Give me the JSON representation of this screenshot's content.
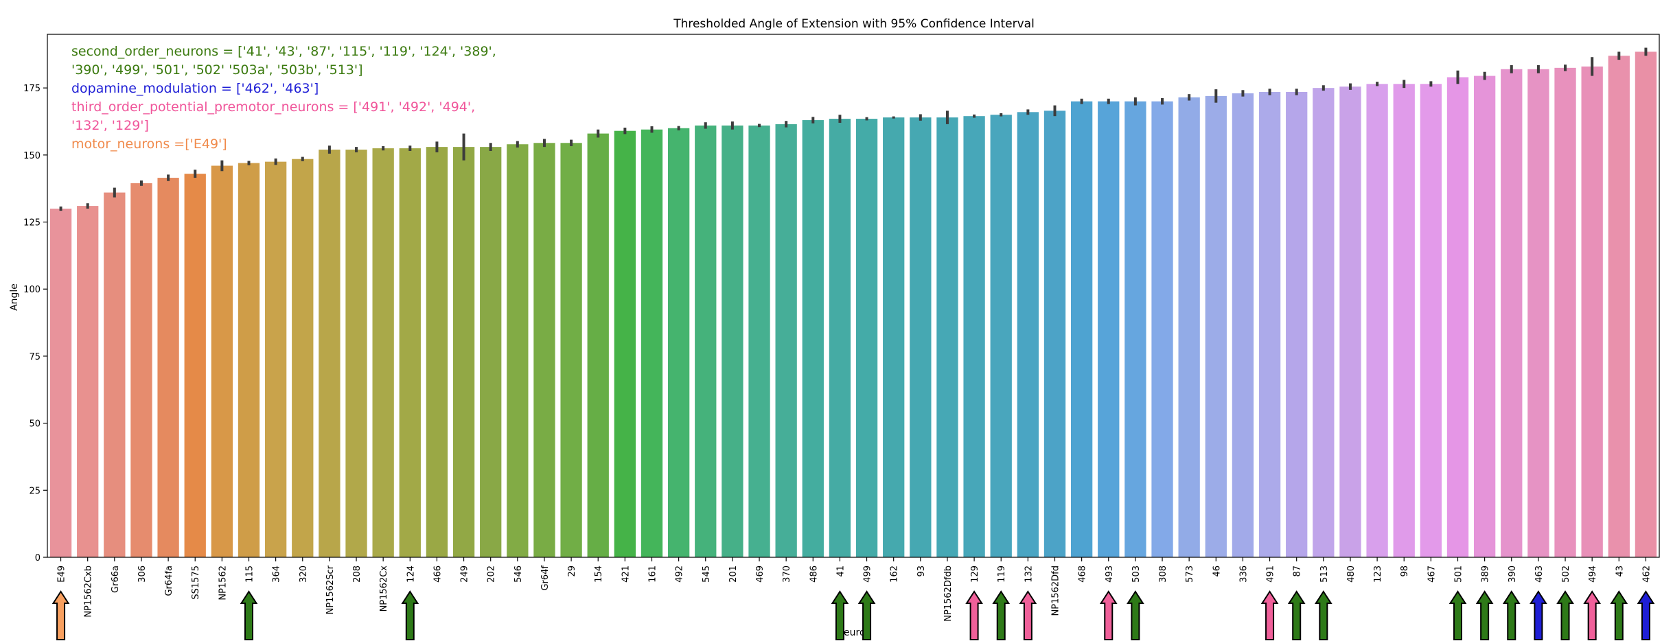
{
  "chart_data": {
    "type": "bar",
    "title": "Thresholded Angle of Extension with 95% Confidence Interval",
    "xlabel": "Neuron",
    "ylabel": "Angle",
    "ylim": [
      0,
      195
    ],
    "yticks": [
      0,
      25,
      50,
      75,
      100,
      125,
      150,
      175
    ],
    "grid": false,
    "categories": [
      "E49",
      "NP1562Cxb",
      "Gr66a",
      "306",
      "Gr64fa",
      "SS1575",
      "NP1562",
      "115",
      "364",
      "320",
      "NP1562Scr",
      "208",
      "NP1562Cx",
      "124",
      "466",
      "249",
      "202",
      "546",
      "Gr64f",
      "29",
      "154",
      "421",
      "161",
      "492",
      "545",
      "201",
      "469",
      "370",
      "486",
      "41",
      "499",
      "162",
      "93",
      "NP1562Dfdb",
      "129",
      "119",
      "132",
      "NP1562Dfd",
      "468",
      "493",
      "503",
      "308",
      "573",
      "46",
      "336",
      "491",
      "87",
      "513",
      "480",
      "123",
      "98",
      "467",
      "501",
      "389",
      "390",
      "463",
      "502",
      "494",
      "43",
      "462"
    ],
    "values": [
      130,
      131,
      136,
      139.5,
      141.5,
      143,
      146,
      147,
      147.5,
      148.5,
      152,
      152,
      152.5,
      152.5,
      153,
      153,
      153,
      154,
      154.5,
      154.5,
      158,
      159,
      159.5,
      160,
      161,
      161,
      161,
      161.5,
      163,
      163.5,
      163.5,
      164,
      164,
      164,
      164.5,
      165,
      166,
      166.5,
      170,
      170,
      170,
      170,
      171.5,
      172,
      173,
      173.5,
      173.5,
      175,
      175.5,
      176.5,
      176.5,
      176.5,
      179,
      179.5,
      182,
      182,
      182.5,
      183,
      187,
      188.5
    ],
    "errors": [
      0.8,
      1,
      1.8,
      1,
      1.2,
      1.5,
      2,
      0.8,
      1.2,
      0.8,
      1.5,
      1,
      0.8,
      1,
      2,
      5,
      1.5,
      1.2,
      1.5,
      1.2,
      1.5,
      1.2,
      1.2,
      0.8,
      1.2,
      1.5,
      0.6,
      1.2,
      1.2,
      1.5,
      0.6,
      0.4,
      1.2,
      2.5,
      0.6,
      0.6,
      1,
      2,
      1,
      1,
      1.5,
      1.2,
      1.2,
      2.5,
      1.2,
      1.2,
      1.2,
      1,
      1.2,
      0.8,
      1.5,
      1,
      2.5,
      1.5,
      1.5,
      1.5,
      1.2,
      3.5,
      1.5,
      1.5
    ],
    "colors": [
      "#e8939b",
      "#e8918f",
      "#e68e7e",
      "#e68c6e",
      "#e58a5f",
      "#e58a48",
      "#d89848",
      "#cf9d48",
      "#c9a34b",
      "#c2a54a",
      "#b8a64a",
      "#b1a84a",
      "#a9a949",
      "#a2a947",
      "#9aa845",
      "#92a845",
      "#89a846",
      "#82ab45",
      "#79ac45",
      "#71ae46",
      "#66ae46",
      "#45b348",
      "#44b55a",
      "#45b46e",
      "#45b27b",
      "#46b088",
      "#46b090",
      "#46ae98",
      "#44ad9f",
      "#45aba4",
      "#44aba8",
      "#45a9ae",
      "#46a8b2",
      "#46a8b5",
      "#47a7b9",
      "#49a6bd",
      "#4aa5c3",
      "#4ca3c7",
      "#4ea3d1",
      "#57a4d9",
      "#66a6df",
      "#83a9e8",
      "#92abe7",
      "#9cace8",
      "#a2aae9",
      "#acaaea",
      "#b5a6ea",
      "#c0a5ea",
      "#c9a2e8",
      "#d8a0ec",
      "#e09bea",
      "#e39aea",
      "#e596e6",
      "#e594d9",
      "#e593cc",
      "#e693c4",
      "#e891bd",
      "#e890b8",
      "#e991ac",
      "#e990a6"
    ],
    "legend_position": "top-left",
    "annotations": [
      {
        "lines": [
          "second_order_neurons = ['41', '43', '87', '115', '119', '124', '389',",
          "'390', '499', '501', '502' '503a', '503b', '513']"
        ],
        "color": "#3b7a0f"
      },
      {
        "lines": [
          "dopamine_modulation = ['462', '463']"
        ],
        "color": "#1f1fd6"
      },
      {
        "lines": [
          "third_order_potential_premotor_neurons = ['491', '492', '494',",
          "'132', '129']"
        ],
        "color": "#f0559a"
      },
      {
        "lines": [
          "motor_neurons =['E49']"
        ],
        "color": "#f08a4b"
      }
    ],
    "arrows": [
      {
        "category": "E49",
        "color": "#f8a060"
      },
      {
        "category": "115",
        "color": "#2e7a18"
      },
      {
        "category": "124",
        "color": "#2e7a18"
      },
      {
        "category": "41",
        "color": "#2e7a18"
      },
      {
        "category": "499",
        "color": "#2e7a18"
      },
      {
        "category": "129",
        "color": "#f0609a"
      },
      {
        "category": "119",
        "color": "#2e7a18"
      },
      {
        "category": "132",
        "color": "#f0609a"
      },
      {
        "category": "493",
        "color": "#f0609a"
      },
      {
        "category": "503",
        "color": "#2e7a18"
      },
      {
        "category": "491",
        "color": "#f0609a"
      },
      {
        "category": "87",
        "color": "#2e7a18"
      },
      {
        "category": "513",
        "color": "#2e7a18"
      },
      {
        "category": "501",
        "color": "#2e7a18"
      },
      {
        "category": "389",
        "color": "#2e7a18"
      },
      {
        "category": "390",
        "color": "#2e7a18"
      },
      {
        "category": "463",
        "color": "#1f1fd6"
      },
      {
        "category": "502",
        "color": "#2e7a18"
      },
      {
        "category": "494",
        "color": "#f0609a"
      },
      {
        "category": "43",
        "color": "#2e7a18"
      },
      {
        "category": "462",
        "color": "#1f1fd6"
      }
    ]
  }
}
